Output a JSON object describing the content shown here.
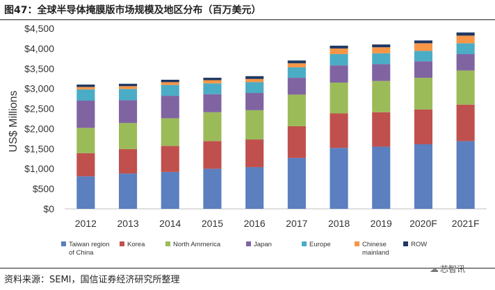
{
  "figure": {
    "title": "图47：全球半导体掩膜版市场规模及地区分布（百万美元）",
    "source": "资料来源：SEMI，国信证券经济研究所整理",
    "watermark": "芯智讯"
  },
  "chart_data": {
    "type": "bar",
    "stacked": true,
    "title": "",
    "xlabel": "",
    "ylabel": "US$ Millions",
    "ylim": [
      0,
      4500
    ],
    "yticks": [
      0,
      500,
      1000,
      1500,
      2000,
      2500,
      3000,
      3500,
      4000,
      4500
    ],
    "ytick_labels": [
      "$0",
      "$500",
      "$1,000",
      "$1,500",
      "$2,000",
      "$2,500",
      "$3,000",
      "$3,500",
      "$4,000",
      "$4,500"
    ],
    "categories": [
      "2012",
      "2013",
      "2014",
      "2015",
      "2016",
      "2017",
      "2018",
      "2019",
      "2020F",
      "2021F"
    ],
    "grid": false,
    "legend_position": "bottom",
    "series": [
      {
        "name": "Taiwan region of China",
        "color": "#5b7fbf",
        "values": [
          810,
          880,
          920,
          1000,
          1040,
          1270,
          1520,
          1550,
          1610,
          1690
        ]
      },
      {
        "name": "Korea",
        "color": "#c0504d",
        "values": [
          580,
          610,
          650,
          690,
          690,
          790,
          860,
          860,
          870,
          910
        ]
      },
      {
        "name": "North Ammerica",
        "color": "#9bbb59",
        "values": [
          630,
          650,
          690,
          720,
          730,
          790,
          770,
          780,
          790,
          850
        ]
      },
      {
        "name": "Japan",
        "color": "#8064a2",
        "values": [
          680,
          570,
          560,
          450,
          430,
          420,
          430,
          420,
          410,
          410
        ]
      },
      {
        "name": "Europe",
        "color": "#4bacc6",
        "values": [
          280,
          280,
          270,
          270,
          270,
          260,
          280,
          270,
          260,
          270
        ]
      },
      {
        "name": "Chinese mainland",
        "color": "#f79646",
        "values": [
          60,
          70,
          70,
          80,
          80,
          100,
          140,
          150,
          190,
          190
        ]
      },
      {
        "name": "ROW",
        "color": "#1f3864",
        "values": [
          60,
          60,
          60,
          60,
          70,
          70,
          70,
          70,
          70,
          80
        ]
      }
    ]
  }
}
